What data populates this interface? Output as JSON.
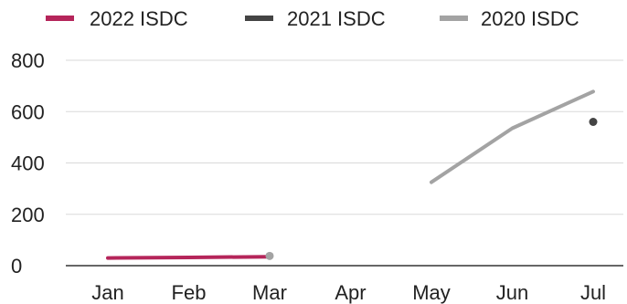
{
  "chart_data": {
    "type": "line",
    "categories": [
      "Jan",
      "Feb",
      "Mar",
      "Apr",
      "May",
      "Jun",
      "Jul"
    ],
    "series": [
      {
        "name": "2022 ISDC",
        "color": "#b5255a",
        "values": [
          30,
          32,
          35,
          null,
          null,
          null,
          null
        ]
      },
      {
        "name": "2021 ISDC",
        "color": "#444444",
        "values": [
          null,
          null,
          null,
          null,
          null,
          null,
          560
        ]
      },
      {
        "name": "2020 ISDC",
        "color": "#a3a3a3",
        "values": [
          null,
          null,
          38,
          null,
          325,
          535,
          678
        ]
      }
    ],
    "ylim": [
      0,
      800
    ],
    "yticks": [
      0,
      200,
      400,
      600,
      800
    ],
    "grid": true,
    "legend_position": "top",
    "title": "",
    "xlabel": "",
    "ylabel": ""
  }
}
